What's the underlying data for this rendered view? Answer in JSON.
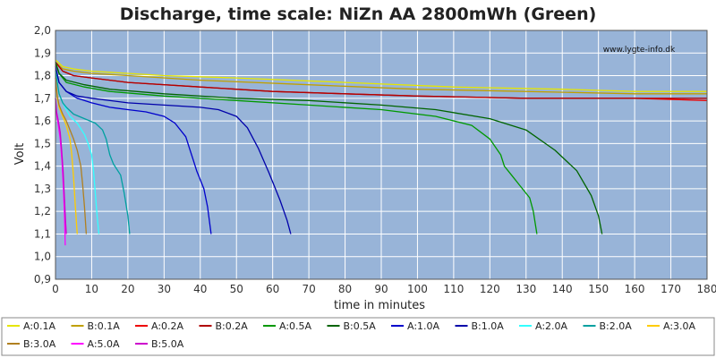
{
  "chart_data": {
    "type": "line",
    "title": "Discharge, time scale: NiZn AA 2800mWh (Green)",
    "xlabel": "time in minutes",
    "ylabel": "Volt",
    "watermark": "www.lygte-info.dk",
    "xlim": [
      0,
      180
    ],
    "ylim": [
      0.9,
      2.0
    ],
    "xticks": [
      "0",
      "10",
      "20",
      "30",
      "40",
      "50",
      "60",
      "70",
      "80",
      "90",
      "100",
      "110",
      "120",
      "130",
      "140",
      "150",
      "160",
      "170",
      "180"
    ],
    "yticks": [
      "0,9",
      "1,0",
      "1,1",
      "1,2",
      "1,3",
      "1,4",
      "1,5",
      "1,6",
      "1,7",
      "1,8",
      "1,9",
      "2,0"
    ],
    "grid": true,
    "legend_position": "bottom",
    "plot_background": "#98b4d8",
    "series": [
      {
        "name": "A:0.1A",
        "color": "#e6e600",
        "points": [
          [
            0,
            1.87
          ],
          [
            2,
            1.84
          ],
          [
            5,
            1.83
          ],
          [
            10,
            1.82
          ],
          [
            20,
            1.81
          ],
          [
            30,
            1.8
          ],
          [
            50,
            1.79
          ],
          [
            80,
            1.77
          ],
          [
            110,
            1.75
          ],
          [
            140,
            1.74
          ],
          [
            160,
            1.73
          ],
          [
            180,
            1.73
          ]
        ]
      },
      {
        "name": "B:0.1A",
        "color": "#c0a000",
        "points": [
          [
            0,
            1.86
          ],
          [
            2,
            1.83
          ],
          [
            5,
            1.82
          ],
          [
            10,
            1.81
          ],
          [
            20,
            1.8
          ],
          [
            40,
            1.78
          ],
          [
            70,
            1.76
          ],
          [
            100,
            1.74
          ],
          [
            130,
            1.73
          ],
          [
            160,
            1.72
          ],
          [
            180,
            1.72
          ]
        ]
      },
      {
        "name": "A:0.2A",
        "color": "#ee0000",
        "points": [
          [
            0,
            1.86
          ],
          [
            2,
            1.82
          ],
          [
            5,
            1.8
          ],
          [
            10,
            1.79
          ],
          [
            20,
            1.77
          ],
          [
            40,
            1.75
          ],
          [
            60,
            1.73
          ],
          [
            80,
            1.72
          ],
          [
            100,
            1.71
          ],
          [
            130,
            1.7
          ],
          [
            160,
            1.7
          ],
          [
            180,
            1.69
          ]
        ]
      },
      {
        "name": "B:0.2A",
        "color": "#b00000",
        "points": [
          [
            0,
            1.86
          ],
          [
            2,
            1.82
          ],
          [
            5,
            1.8
          ],
          [
            10,
            1.79
          ],
          [
            20,
            1.77
          ],
          [
            40,
            1.75
          ],
          [
            60,
            1.73
          ],
          [
            80,
            1.72
          ],
          [
            100,
            1.71
          ],
          [
            130,
            1.7
          ],
          [
            160,
            1.7
          ],
          [
            180,
            1.7
          ]
        ]
      },
      {
        "name": "A:0.5A",
        "color": "#009900",
        "points": [
          [
            0,
            1.86
          ],
          [
            1,
            1.81
          ],
          [
            3,
            1.77
          ],
          [
            8,
            1.75
          ],
          [
            15,
            1.73
          ],
          [
            30,
            1.71
          ],
          [
            50,
            1.69
          ],
          [
            70,
            1.67
          ],
          [
            90,
            1.65
          ],
          [
            105,
            1.62
          ],
          [
            115,
            1.58
          ],
          [
            120,
            1.52
          ],
          [
            123,
            1.45
          ],
          [
            124,
            1.4
          ],
          [
            126,
            1.36
          ],
          [
            128,
            1.32
          ],
          [
            131,
            1.26
          ],
          [
            132,
            1.2
          ],
          [
            133,
            1.1
          ]
        ]
      },
      {
        "name": "B:0.5A",
        "color": "#006400",
        "points": [
          [
            0,
            1.86
          ],
          [
            1,
            1.81
          ],
          [
            3,
            1.78
          ],
          [
            8,
            1.76
          ],
          [
            15,
            1.74
          ],
          [
            30,
            1.72
          ],
          [
            50,
            1.7
          ],
          [
            70,
            1.69
          ],
          [
            90,
            1.67
          ],
          [
            105,
            1.65
          ],
          [
            120,
            1.61
          ],
          [
            130,
            1.56
          ],
          [
            138,
            1.47
          ],
          [
            144,
            1.38
          ],
          [
            148,
            1.27
          ],
          [
            150,
            1.18
          ],
          [
            151,
            1.1
          ]
        ]
      },
      {
        "name": "A:1.0A",
        "color": "#0000cc",
        "points": [
          [
            0,
            1.84
          ],
          [
            1,
            1.77
          ],
          [
            3,
            1.73
          ],
          [
            6,
            1.7
          ],
          [
            10,
            1.68
          ],
          [
            15,
            1.66
          ],
          [
            20,
            1.65
          ],
          [
            25,
            1.64
          ],
          [
            30,
            1.62
          ],
          [
            33,
            1.59
          ],
          [
            36,
            1.53
          ],
          [
            37,
            1.48
          ],
          [
            38,
            1.43
          ],
          [
            39,
            1.38
          ],
          [
            41,
            1.3
          ],
          [
            42,
            1.22
          ],
          [
            43,
            1.1
          ]
        ]
      },
      {
        "name": "B:1.0A",
        "color": "#0000aa",
        "points": [
          [
            0,
            1.84
          ],
          [
            1,
            1.77
          ],
          [
            3,
            1.73
          ],
          [
            6,
            1.71
          ],
          [
            10,
            1.7
          ],
          [
            20,
            1.68
          ],
          [
            30,
            1.67
          ],
          [
            40,
            1.66
          ],
          [
            45,
            1.65
          ],
          [
            50,
            1.62
          ],
          [
            53,
            1.57
          ],
          [
            56,
            1.48
          ],
          [
            59,
            1.37
          ],
          [
            62,
            1.25
          ],
          [
            64,
            1.16
          ],
          [
            65,
            1.1
          ]
        ]
      },
      {
        "name": "A:2.0A",
        "color": "#33ffff",
        "points": [
          [
            0,
            1.82
          ],
          [
            1,
            1.72
          ],
          [
            2,
            1.68
          ],
          [
            3,
            1.65
          ],
          [
            4,
            1.62
          ],
          [
            6,
            1.59
          ],
          [
            8,
            1.54
          ],
          [
            9,
            1.5
          ],
          [
            10,
            1.45
          ],
          [
            10.5,
            1.38
          ],
          [
            11,
            1.28
          ],
          [
            11.5,
            1.18
          ],
          [
            12,
            1.1
          ]
        ]
      },
      {
        "name": "B:2.0A",
        "color": "#00a0a0",
        "points": [
          [
            0,
            1.82
          ],
          [
            1,
            1.72
          ],
          [
            2,
            1.68
          ],
          [
            3,
            1.66
          ],
          [
            5,
            1.63
          ],
          [
            8,
            1.61
          ],
          [
            11,
            1.59
          ],
          [
            13,
            1.56
          ],
          [
            14,
            1.52
          ],
          [
            15,
            1.45
          ],
          [
            16,
            1.41
          ],
          [
            18,
            1.36
          ],
          [
            19,
            1.28
          ],
          [
            20,
            1.18
          ],
          [
            20.5,
            1.1
          ]
        ]
      },
      {
        "name": "A:3.0A",
        "color": "#ffcc00",
        "points": [
          [
            0,
            1.79
          ],
          [
            0.5,
            1.7
          ],
          [
            1,
            1.66
          ],
          [
            2,
            1.62
          ],
          [
            3,
            1.58
          ],
          [
            4,
            1.52
          ],
          [
            4.5,
            1.45
          ],
          [
            5,
            1.35
          ],
          [
            5.5,
            1.22
          ],
          [
            6,
            1.1
          ]
        ]
      },
      {
        "name": "B:3.0A",
        "color": "#b08020",
        "points": [
          [
            0,
            1.79
          ],
          [
            0.5,
            1.71
          ],
          [
            1,
            1.67
          ],
          [
            2,
            1.63
          ],
          [
            3,
            1.6
          ],
          [
            4,
            1.56
          ],
          [
            5,
            1.52
          ],
          [
            6,
            1.47
          ],
          [
            7,
            1.4
          ],
          [
            7.5,
            1.32
          ],
          [
            8,
            1.22
          ],
          [
            8.5,
            1.1
          ]
        ]
      },
      {
        "name": "A:5.0A",
        "color": "#ff00ff",
        "points": [
          [
            0,
            1.7
          ],
          [
            0.3,
            1.63
          ],
          [
            0.8,
            1.58
          ],
          [
            1.3,
            1.52
          ],
          [
            1.8,
            1.42
          ],
          [
            2.2,
            1.3
          ],
          [
            2.5,
            1.18
          ],
          [
            2.7,
            1.05
          ]
        ]
      },
      {
        "name": "B:5.0A",
        "color": "#cc00cc",
        "points": [
          [
            0,
            1.7
          ],
          [
            0.3,
            1.64
          ],
          [
            0.8,
            1.6
          ],
          [
            1.3,
            1.55
          ],
          [
            1.7,
            1.47
          ],
          [
            2.1,
            1.38
          ],
          [
            2.5,
            1.25
          ],
          [
            2.8,
            1.15
          ],
          [
            3.0,
            1.1
          ]
        ]
      }
    ]
  }
}
